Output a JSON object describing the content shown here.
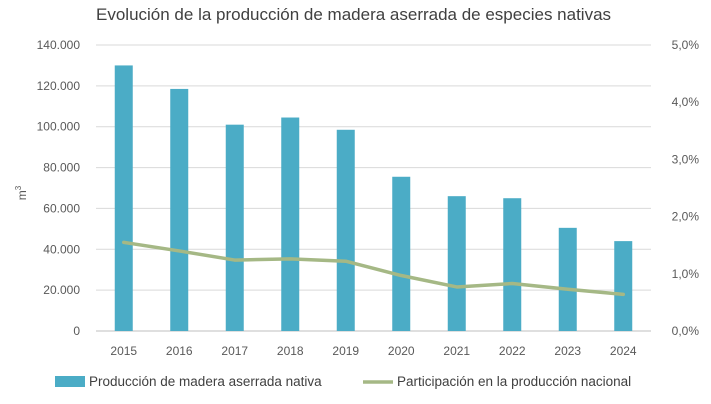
{
  "chart_data": {
    "type": "bar",
    "title": "Evolución de la producción de madera aserrada de especies nativas",
    "ylabel": "m",
    "ylabel_superscript": "3",
    "categories": [
      "2015",
      "2016",
      "2017",
      "2018",
      "2019",
      "2020",
      "2021",
      "2022",
      "2023",
      "2024"
    ],
    "ylim": [
      0,
      140000
    ],
    "yticks": [
      0,
      20000,
      40000,
      60000,
      80000,
      100000,
      120000,
      140000
    ],
    "ytick_labels": [
      "0",
      "20.000",
      "40.000",
      "60.000",
      "80.000",
      "100.000",
      "120.000",
      "140.000"
    ],
    "y2lim": [
      0,
      5
    ],
    "y2ticks": [
      0,
      1,
      2,
      3,
      4,
      5
    ],
    "y2tick_labels": [
      "0,0%",
      "1,0%",
      "2,0%",
      "3,0%",
      "4,0%",
      "5,0%"
    ],
    "grid": true,
    "legend_position": "bottom",
    "series": [
      {
        "name": "Producción de madera aserrada nativa",
        "type": "bar",
        "axis": "left",
        "color": "#4BACC6",
        "values": [
          130000,
          118500,
          101000,
          104500,
          98500,
          75500,
          66000,
          65000,
          50500,
          44000
        ]
      },
      {
        "name": "Participación en la producción nacional",
        "type": "line",
        "axis": "right",
        "color": "#A5B885",
        "values": [
          1.55,
          1.4,
          1.24,
          1.26,
          1.22,
          0.97,
          0.77,
          0.83,
          0.73,
          0.64
        ]
      }
    ]
  }
}
